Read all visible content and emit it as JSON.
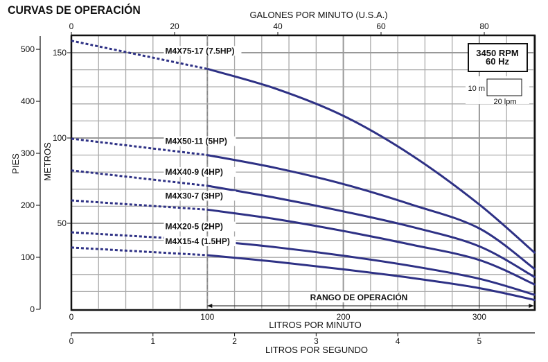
{
  "chart_data": {
    "type": "line",
    "title": "CURVAS DE OPERACIÓN",
    "xlabel": "LITROS POR MINUTO",
    "x_top_label": "GALONES POR MINUTO (U.S.A.)",
    "x_bottom2_label": "LITROS POR SEGUNDO",
    "ylabel_left": "PIES",
    "ylabel_right": "METROS",
    "xlim": [
      0,
      341
    ],
    "ylim": [
      0,
      160
    ],
    "x_ticks": [
      "0",
      "100",
      "200",
      "300"
    ],
    "x_top_ticks": [
      "0",
      "20",
      "40",
      "60",
      "80"
    ],
    "x_lps_ticks": [
      "0",
      "1",
      "2",
      "3",
      "4",
      "5"
    ],
    "y_metros_ticks": [
      "50",
      "100",
      "150"
    ],
    "y_pies_ticks": [
      "0",
      "100",
      "200",
      "300",
      "400",
      "500"
    ],
    "grid": true,
    "line_color": "#2e3185",
    "dashed_below_lpm": 100,
    "operating_range": {
      "label": "RANGO DE OPERACIÓN",
      "from_lpm": 100,
      "to_lpm": 341
    },
    "info_box": {
      "line1": "3450 RPM",
      "line2": "60 Hz"
    },
    "scale_box": {
      "vertical": "10 m",
      "horizontal": "20 lpm"
    },
    "x": [
      0,
      100,
      150,
      200,
      250,
      300,
      341
    ],
    "series": [
      {
        "name": "M4X75-17 (7.5HP)",
        "values": [
          157,
          140.5,
          129,
          113,
          90,
          61,
          32.5
        ]
      },
      {
        "name": "M4X50-11 (5HP)",
        "values": [
          99.6,
          90,
          82.5,
          73,
          61,
          47,
          23
        ]
      },
      {
        "name": "M4X40-9 (4HP)",
        "values": [
          81,
          72,
          65,
          57,
          48,
          36.5,
          18.3
        ]
      },
      {
        "name": "M4X30-7 (3HP)",
        "values": [
          63.4,
          58,
          52.5,
          45.5,
          37.5,
          28.5,
          14
        ]
      },
      {
        "name": "M4X20-5 (2HP)",
        "values": [
          44.7,
          40,
          36,
          31,
          25,
          17.5,
          8
        ]
      },
      {
        "name": "M4X15-4 (1.5HP)",
        "values": [
          35.8,
          31.3,
          27.5,
          23,
          18,
          12,
          5
        ]
      }
    ]
  }
}
